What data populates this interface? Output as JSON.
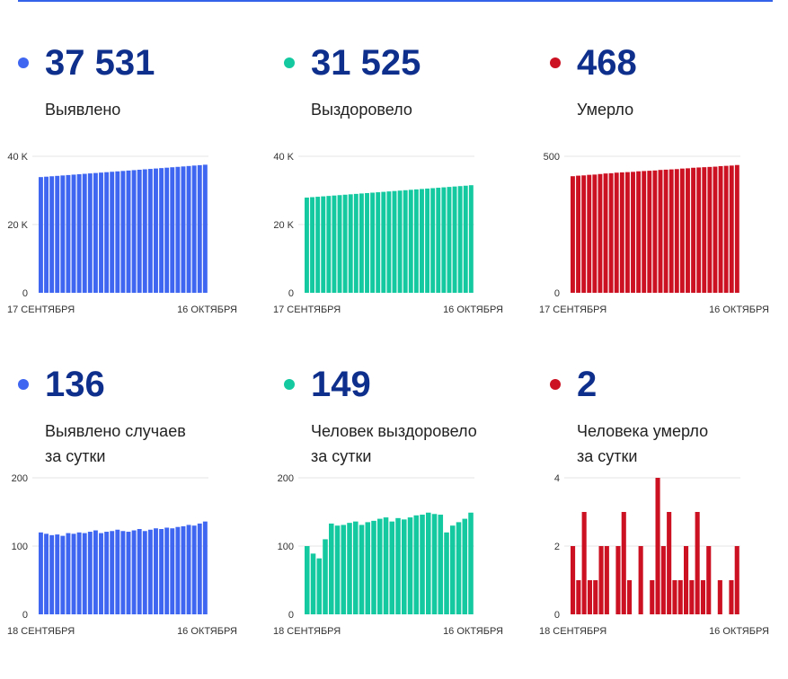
{
  "panels": [
    {
      "id": "cumulative-cases",
      "color": "#3f66f0",
      "value": "37 531",
      "caption": [
        "Выявлено"
      ],
      "chart_data": {
        "type": "bar",
        "ylim": [
          0,
          40000
        ],
        "yticks": [
          {
            "v": 0,
            "label": "0"
          },
          {
            "v": 20000,
            "label": "20 K"
          },
          {
            "v": 40000,
            "label": "40 K"
          }
        ],
        "x_start_label": "17 СЕНТЯБРЯ",
        "x_end_label": "16 ОКТЯБРЯ",
        "values": [
          33900,
          34020,
          34140,
          34260,
          34380,
          34500,
          34620,
          34740,
          34860,
          34980,
          35100,
          35220,
          35340,
          35460,
          35580,
          35700,
          35820,
          35940,
          36060,
          36180,
          36300,
          36420,
          36540,
          36660,
          36780,
          36900,
          37020,
          37150,
          37280,
          37400,
          37531
        ]
      }
    },
    {
      "id": "cumulative-recovered",
      "color": "#14c9a0",
      "value": "31 525",
      "caption": [
        "Выздоровело"
      ],
      "chart_data": {
        "type": "bar",
        "ylim": [
          0,
          40000
        ],
        "yticks": [
          {
            "v": 0,
            "label": "0"
          },
          {
            "v": 20000,
            "label": "20 K"
          },
          {
            "v": 40000,
            "label": "40 K"
          }
        ],
        "x_start_label": "17 СЕНТЯБРЯ",
        "x_end_label": "16 ОКТЯБРЯ",
        "values": [
          27900,
          28020,
          28140,
          28260,
          28380,
          28500,
          28620,
          28740,
          28860,
          28980,
          29100,
          29220,
          29340,
          29460,
          29580,
          29700,
          29820,
          29940,
          30060,
          30180,
          30300,
          30420,
          30540,
          30660,
          30780,
          30900,
          31020,
          31140,
          31260,
          31380,
          31525
        ]
      }
    },
    {
      "id": "cumulative-deaths",
      "color": "#cc1122",
      "value": "468",
      "caption": [
        "Умерло"
      ],
      "chart_data": {
        "type": "bar",
        "ylim": [
          0,
          500
        ],
        "yticks": [
          {
            "v": 0,
            "label": "0"
          },
          {
            "v": 500,
            "label": "500"
          }
        ],
        "x_start_label": "17 СЕНТЯБРЯ",
        "x_end_label": "16 ОКТЯБРЯ",
        "values": [
          427,
          429,
          430,
          432,
          433,
          435,
          437,
          438,
          440,
          441,
          442,
          443,
          445,
          446,
          447,
          448,
          450,
          451,
          452,
          453,
          455,
          456,
          458,
          459,
          460,
          461,
          462,
          464,
          465,
          466,
          468
        ]
      }
    },
    {
      "id": "daily-cases",
      "color": "#3f66f0",
      "value": "136",
      "caption": [
        "Выявлено случаев",
        "за сутки"
      ],
      "chart_data": {
        "type": "bar",
        "ylim": [
          0,
          200
        ],
        "yticks": [
          {
            "v": 0,
            "label": "0"
          },
          {
            "v": 100,
            "label": "100"
          },
          {
            "v": 200,
            "label": "200"
          }
        ],
        "x_start_label": "18 СЕНТЯБРЯ",
        "x_end_label": "16 ОКТЯБРЯ",
        "values": [
          120,
          118,
          116,
          117,
          115,
          119,
          118,
          120,
          119,
          121,
          123,
          119,
          121,
          122,
          124,
          122,
          121,
          123,
          125,
          122,
          124,
          126,
          125,
          127,
          126,
          128,
          129,
          131,
          130,
          133,
          136
        ]
      }
    },
    {
      "id": "daily-recovered",
      "color": "#14c9a0",
      "value": "149",
      "caption": [
        "Человек выздоровело",
        "за сутки"
      ],
      "chart_data": {
        "type": "bar",
        "ylim": [
          0,
          200
        ],
        "yticks": [
          {
            "v": 0,
            "label": "0"
          },
          {
            "v": 100,
            "label": "100"
          },
          {
            "v": 200,
            "label": "200"
          }
        ],
        "x_start_label": "18 СЕНТЯБРЯ",
        "x_end_label": "16 ОКТЯБРЯ",
        "values": [
          100,
          89,
          82,
          110,
          133,
          130,
          131,
          134,
          136,
          131,
          135,
          137,
          140,
          142,
          136,
          141,
          139,
          142,
          145,
          146,
          149,
          147,
          146,
          120,
          130,
          135,
          140,
          149
        ]
      }
    },
    {
      "id": "daily-deaths",
      "color": "#cc1122",
      "value": "2",
      "caption": [
        "Человека умерло",
        "за сутки"
      ],
      "chart_data": {
        "type": "bar",
        "ylim": [
          0,
          4
        ],
        "yticks": [
          {
            "v": 0,
            "label": "0"
          },
          {
            "v": 2,
            "label": "2"
          },
          {
            "v": 4,
            "label": "4"
          }
        ],
        "x_start_label": "18 СЕНТЯБРЯ",
        "x_end_label": "16 ОКТЯБРЯ",
        "values": [
          2,
          1,
          3,
          1,
          1,
          2,
          2,
          0,
          2,
          3,
          1,
          0,
          2,
          0,
          1,
          4,
          2,
          3,
          1,
          1,
          2,
          1,
          3,
          1,
          2,
          0,
          1,
          0,
          1,
          2
        ]
      }
    }
  ]
}
